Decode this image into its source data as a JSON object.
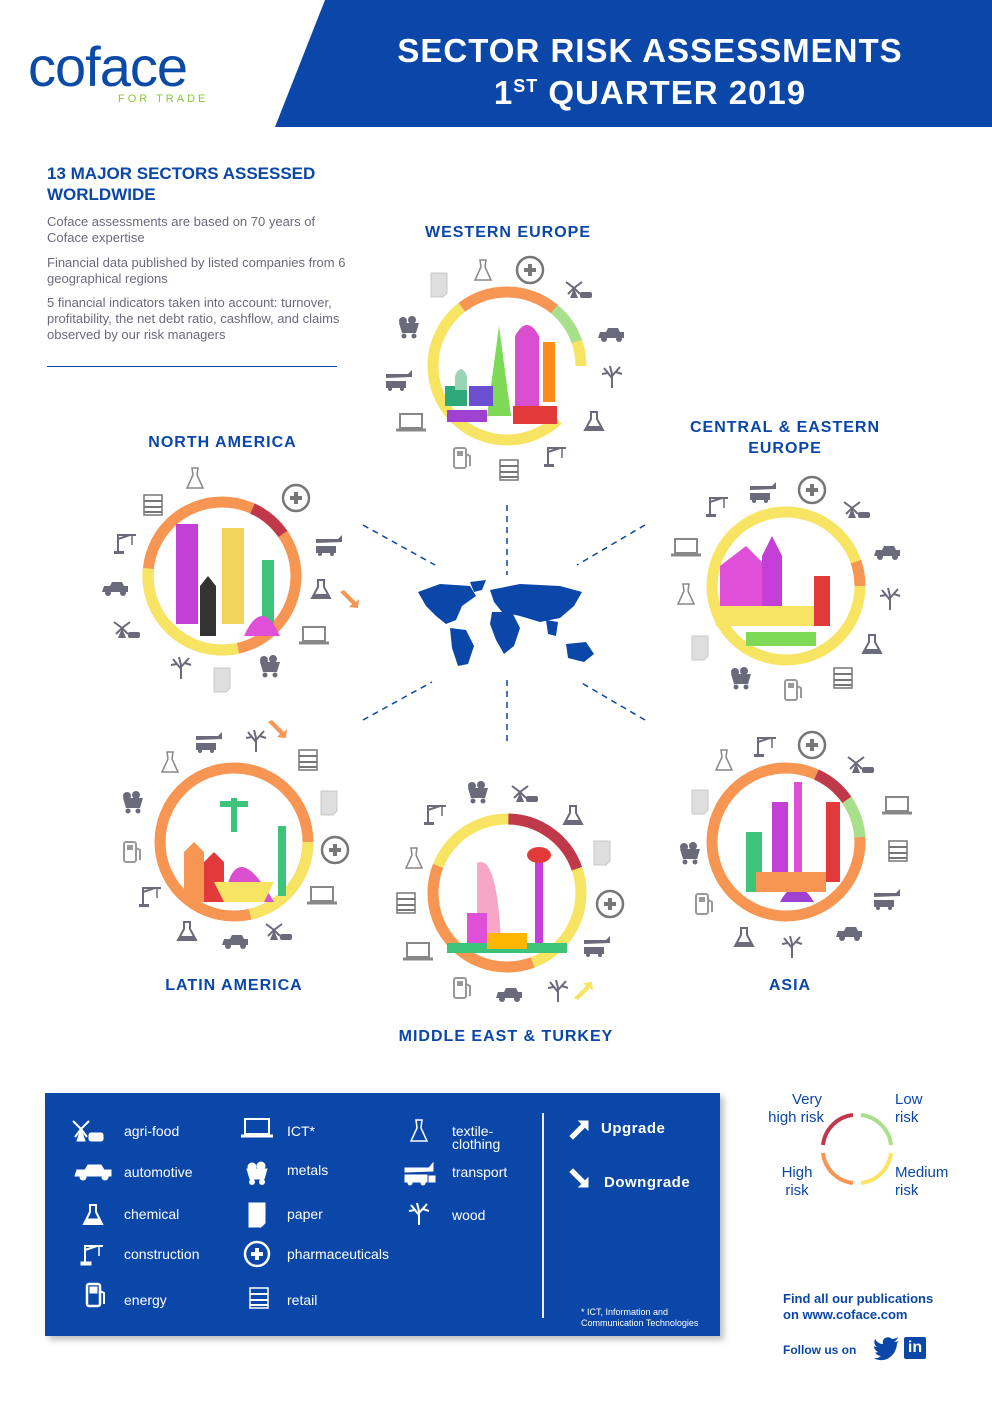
{
  "header": {
    "logo": "coface",
    "logo_tagline": "FOR TRADE",
    "title_line1": "SECTOR RISK ASSESSMENTS",
    "title_line2_prefix": "1",
    "title_line2_sup": "ST",
    "title_line2_rest": " QUARTER 2019"
  },
  "intro": {
    "heading": "13 MAJOR SECTORS ASSESSED WORLDWIDE",
    "p1": "Coface assessments are based on 70 years of Coface expertise",
    "p2": "Financial data published by listed companies from 6 geographical regions",
    "p3": "5 financial indicators taken into account: turnover, profitability, the net debt ratio, cashflow, and claims observed by our risk managers"
  },
  "regions": {
    "western_europe": "WESTERN EUROPE",
    "north_america": "NORTH AMERICA",
    "central_eastern_europe_1": "CENTRAL & EASTERN",
    "central_eastern_europe_2": "EUROPE",
    "latin_america": "LATIN AMERICA",
    "middle_east_turkey": "MIDDLE EAST & TURKEY",
    "asia": "ASIA"
  },
  "legend": {
    "sectors": [
      {
        "label": "agri-food",
        "icon": "windmill-cow-icon"
      },
      {
        "label": "automotive",
        "icon": "car-icon"
      },
      {
        "label": "chemical",
        "icon": "flask-icon"
      },
      {
        "label": "construction",
        "icon": "crane-icon"
      },
      {
        "label": "energy",
        "icon": "fuel-pump-icon"
      },
      {
        "label": "ICT*",
        "icon": "laptop-icon"
      },
      {
        "label": "metals",
        "icon": "minecart-icon"
      },
      {
        "label": "paper",
        "icon": "paper-icon"
      },
      {
        "label": "pharmaceuticals",
        "icon": "medical-cross-icon"
      },
      {
        "label": "retail",
        "icon": "shelves-icon"
      },
      {
        "label": "textile-",
        "label2": "clothing",
        "icon": "dress-icon"
      },
      {
        "label": "transport",
        "icon": "plane-truck-icon"
      },
      {
        "label": "wood",
        "icon": "tree-icon"
      }
    ],
    "upgrade": "Upgrade",
    "downgrade": "Downgrade",
    "footnote": "* ICT, Information and Communication Technologies"
  },
  "risk_legend": {
    "very_high_1": "Very",
    "very_high_2": "high risk",
    "low_1": "Low",
    "low_2": "risk",
    "high_1": "High",
    "high_2": "risk",
    "medium_1": "Medium",
    "medium_2": "risk",
    "colors": {
      "very_high": "#c0394b",
      "high": "#f79552",
      "medium": "#f7e463",
      "low": "#a8e08c"
    }
  },
  "footer": {
    "publications_1": "Find all our publications",
    "publications_2": "on  www.coface.com",
    "follow": "Follow us on"
  },
  "colors": {
    "brand_blue": "#0a47a8",
    "green": "#8cc63f",
    "upgrade": "#f7e463",
    "downgrade": "#f79552"
  }
}
